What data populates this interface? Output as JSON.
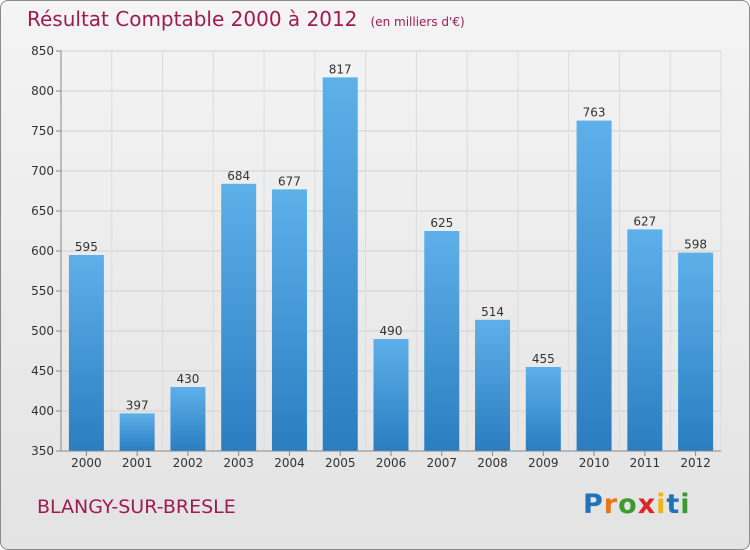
{
  "header": {
    "title": "Résultat Comptable 2000 à 2012",
    "unit": "(en milliers d'€)"
  },
  "footer": {
    "city": "BLANGY-SUR-BRESLE",
    "logo_text": "Proxiti"
  },
  "colors": {
    "bar_top": "#5eb0ea",
    "bar_bottom": "#2a7ec0",
    "title": "#a01b4d",
    "logo_letters": [
      "#1f73b8",
      "#e8751a",
      "#3c9b2e",
      "#d9262c",
      "#f2b21b",
      "#1f73b8",
      "#3c9b2e"
    ]
  },
  "chart_data": {
    "type": "bar",
    "title": "Résultat Comptable 2000 à 2012",
    "categories": [
      "2000",
      "2001",
      "2002",
      "2003",
      "2004",
      "2005",
      "2006",
      "2007",
      "2008",
      "2009",
      "2010",
      "2011",
      "2012"
    ],
    "values": [
      595,
      397,
      430,
      684,
      677,
      817,
      490,
      625,
      514,
      455,
      763,
      627,
      598
    ],
    "ylim": [
      350,
      850
    ],
    "yticks": [
      350,
      400,
      450,
      500,
      550,
      600,
      650,
      700,
      750,
      800,
      850
    ],
    "grid": true,
    "legend": "none"
  }
}
